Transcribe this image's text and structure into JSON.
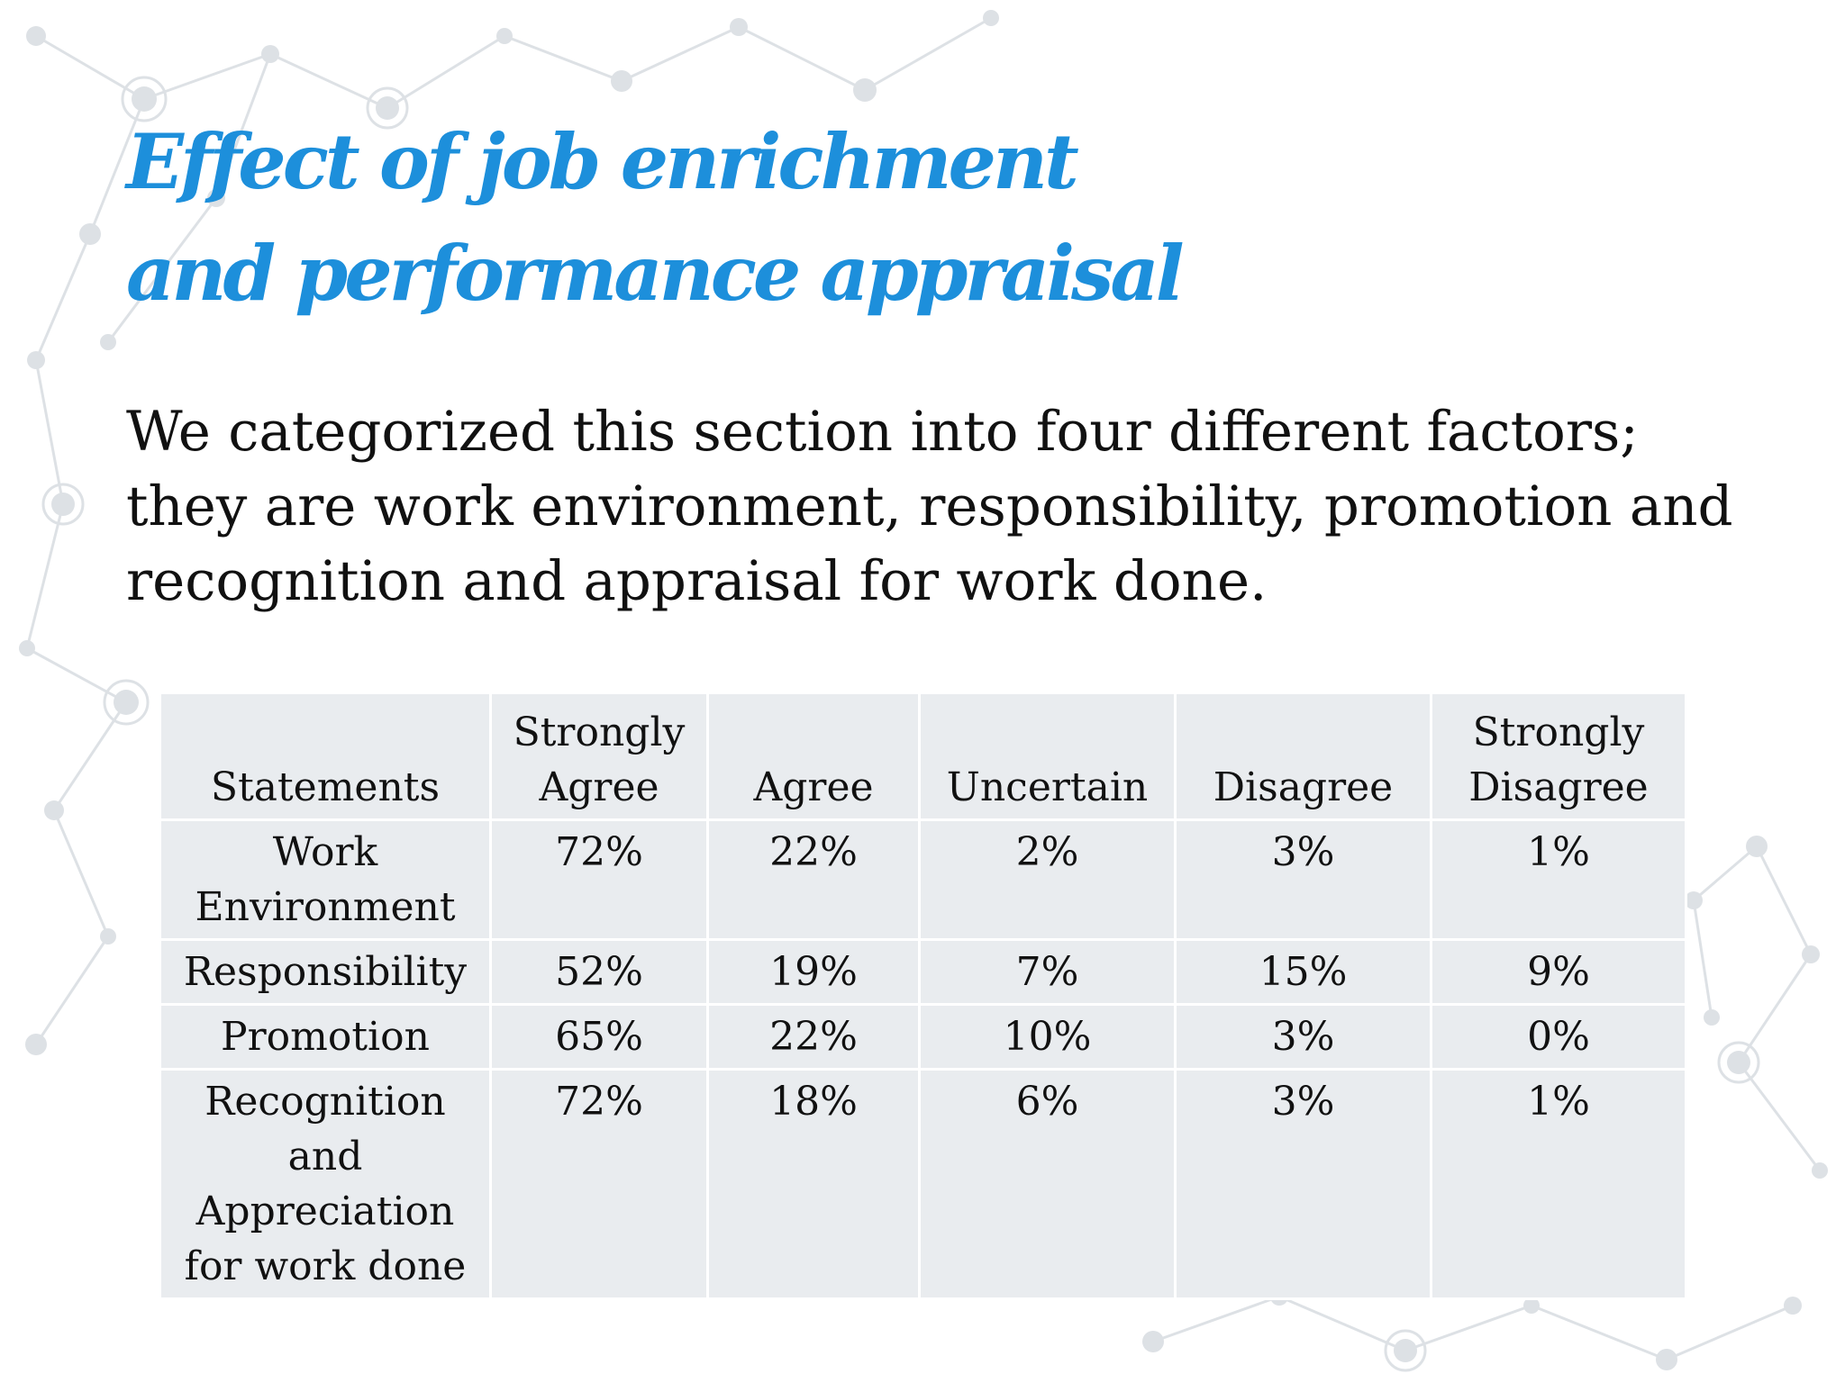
{
  "slide": {
    "title": "Effect of job enrichment and performance appraisal",
    "body": "We categorized this section into four different factors; they are work environment, responsibility, promotion and recognition and appraisal for work done."
  },
  "table": {
    "headers": [
      "Statements",
      "Strongly Agree",
      "Agree",
      "Uncertain",
      "Disagree",
      "Strongly Disagree"
    ],
    "rows": [
      {
        "statement": "Work Environment",
        "values": [
          "72%",
          "22%",
          "2%",
          "3%",
          "1%"
        ]
      },
      {
        "statement": "Responsibility",
        "values": [
          "52%",
          "19%",
          "7%",
          "15%",
          "9%"
        ]
      },
      {
        "statement": "Promotion",
        "values": [
          "65%",
          "22%",
          "10%",
          "3%",
          "0%"
        ]
      },
      {
        "statement": "Recognition and Appreciation for work done",
        "values": [
          "72%",
          "18%",
          "6%",
          "3%",
          "1%"
        ]
      }
    ]
  },
  "colors": {
    "title": "#1d8fdb",
    "cell_background": "#e9ecef",
    "network_pattern": "#d9dde1"
  }
}
